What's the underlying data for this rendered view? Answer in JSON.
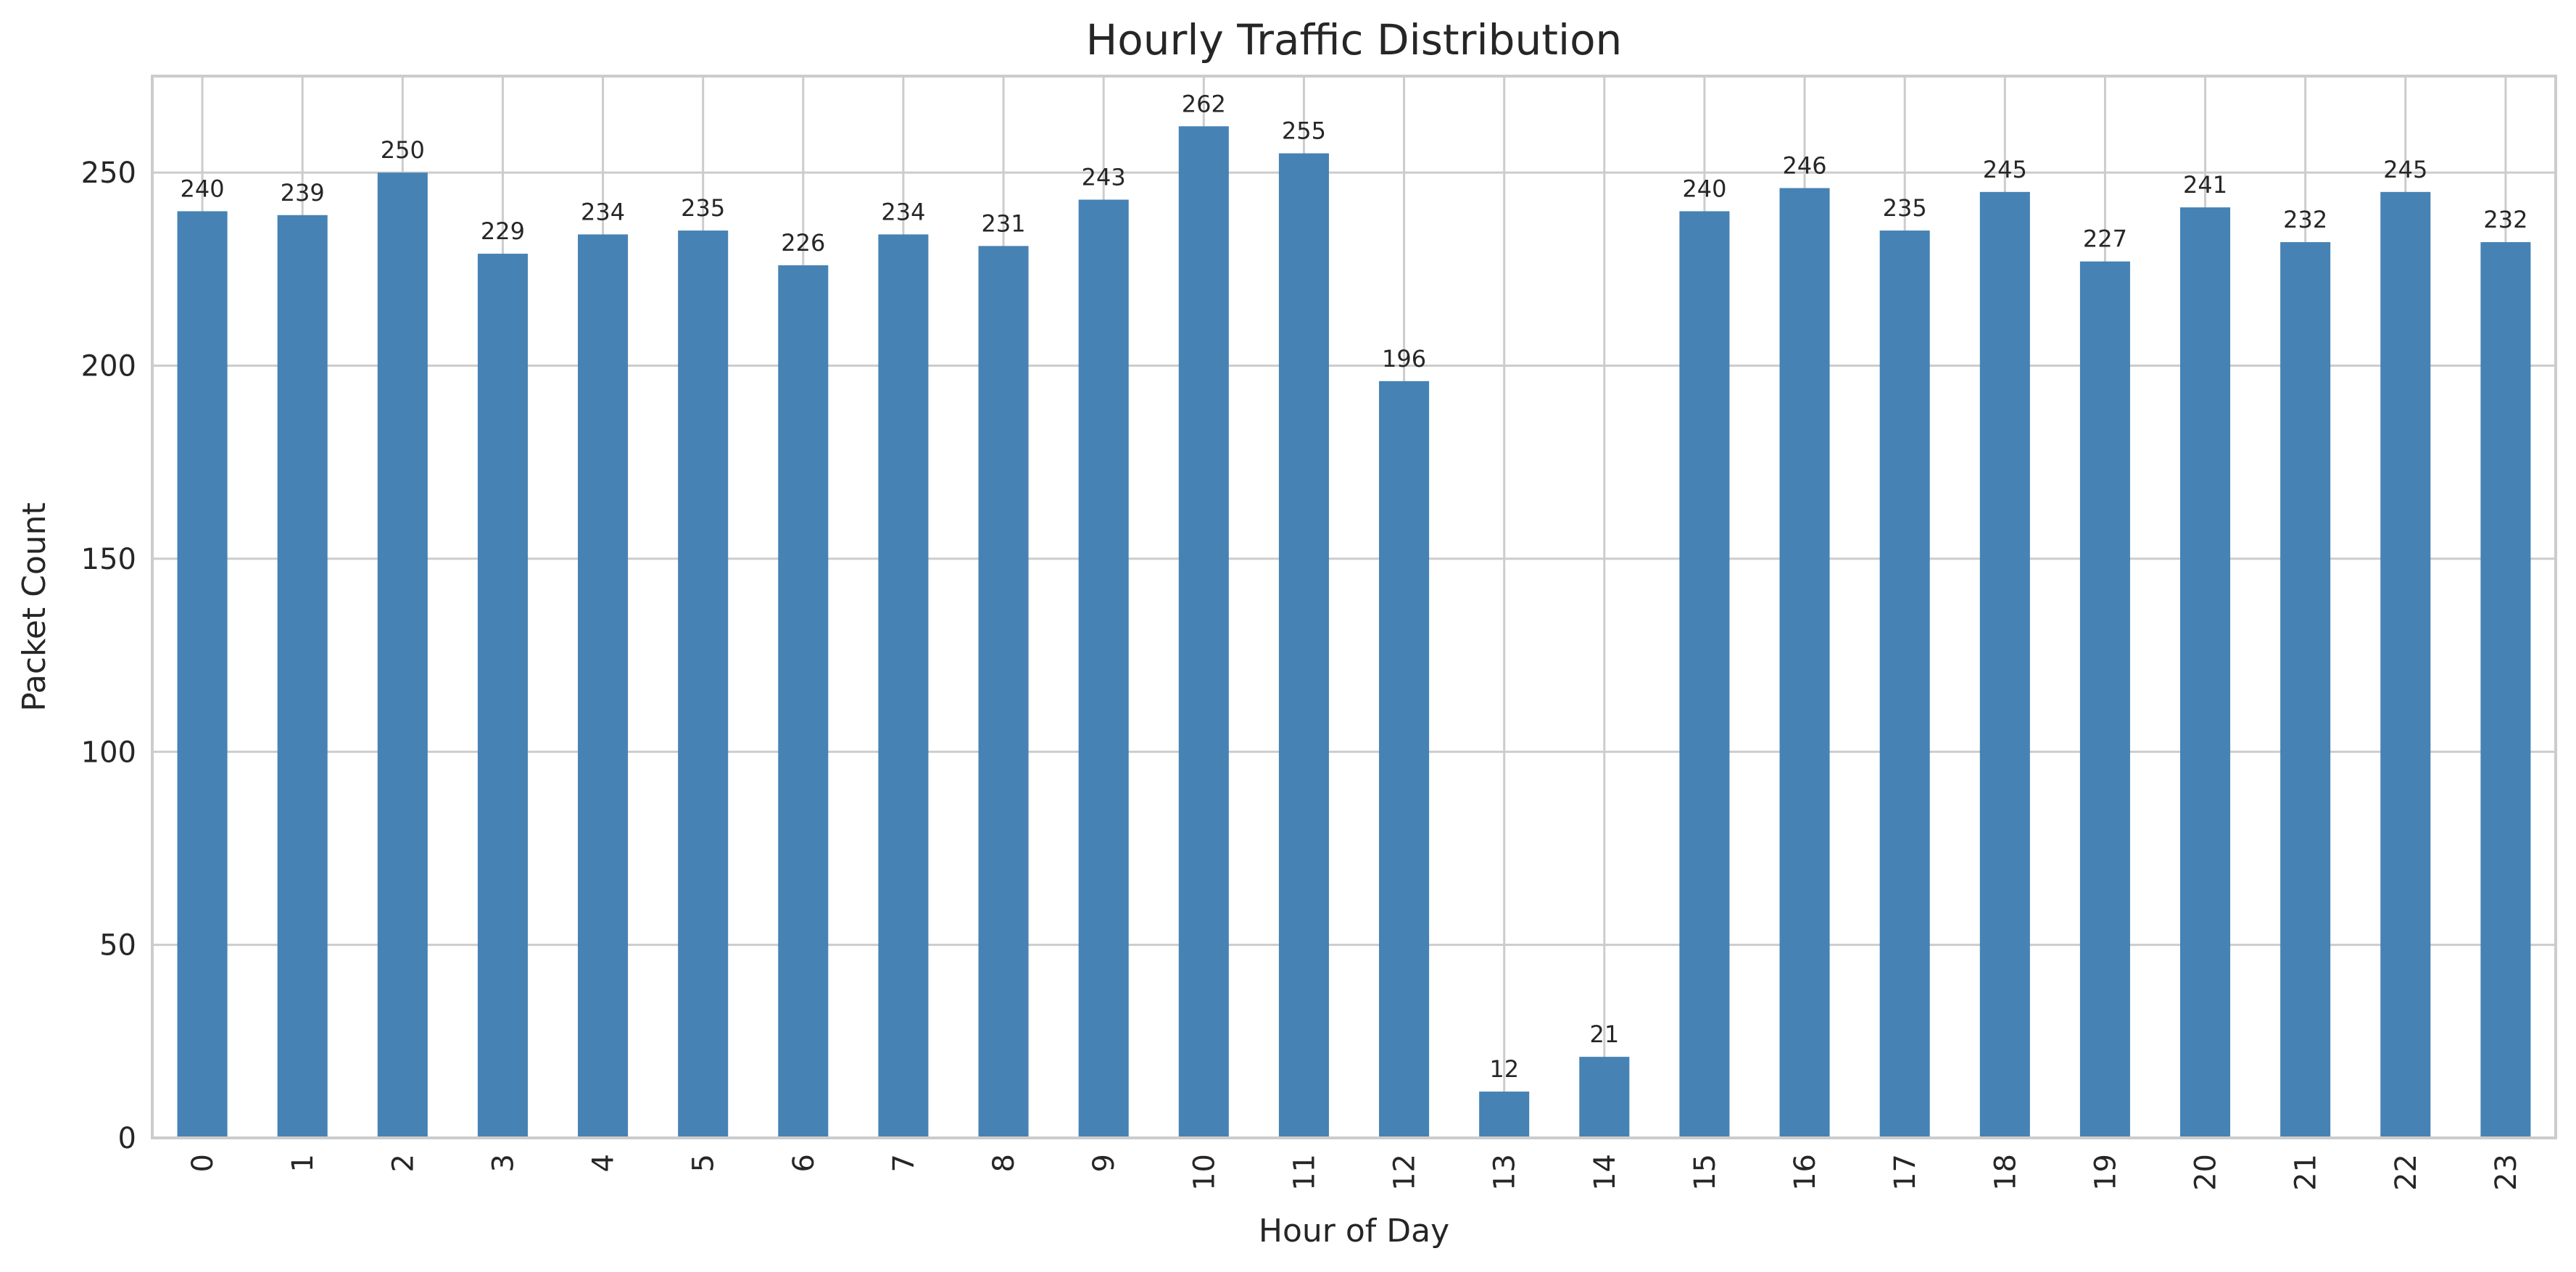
{
  "chart_data": {
    "type": "bar",
    "title": "Hourly Traffic Distribution",
    "xlabel": "Hour of Day",
    "ylabel": "Packet Count",
    "categories": [
      "0",
      "1",
      "2",
      "3",
      "4",
      "5",
      "6",
      "7",
      "8",
      "9",
      "10",
      "11",
      "12",
      "13",
      "14",
      "15",
      "16",
      "17",
      "18",
      "19",
      "20",
      "21",
      "22",
      "23"
    ],
    "values": [
      240,
      239,
      250,
      229,
      234,
      235,
      226,
      234,
      231,
      243,
      262,
      255,
      196,
      12,
      21,
      240,
      246,
      235,
      245,
      227,
      241,
      232,
      245,
      232
    ],
    "ylim": [
      0,
      275
    ],
    "yticks": [
      0,
      50,
      100,
      150,
      200,
      250
    ],
    "grid": true,
    "x_tick_rotation": "vertical",
    "bar_color": "#4682b4",
    "grid_color": "#cccccc"
  }
}
